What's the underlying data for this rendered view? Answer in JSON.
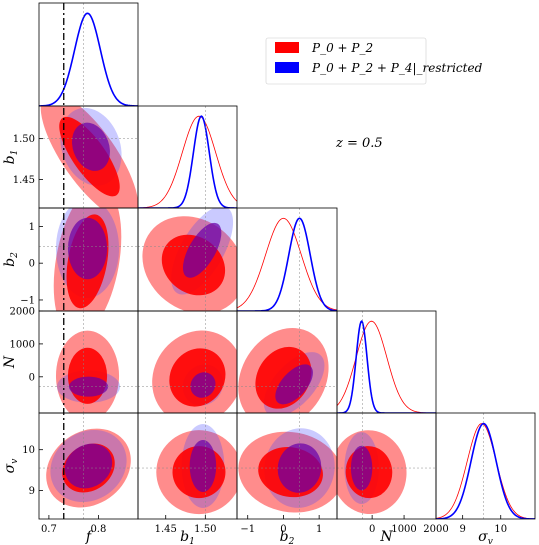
{
  "chart_data": {
    "type": "corner",
    "annotation": "z = 0.5",
    "legend": {
      "placement": "top-right",
      "entries": [
        {
          "label": "P_0 + P_2",
          "color": "#ff0000"
        },
        {
          "label": "P_0 + P_2 + P_4|_restricted",
          "color": "#0000ff"
        }
      ]
    },
    "parameters": [
      {
        "key": "f",
        "label": "f",
        "sub": "",
        "range": [
          0.68,
          0.88
        ],
        "ticks": [
          0.7,
          0.8
        ],
        "tick_labels": [
          "0.7",
          "0.8"
        ],
        "fiducial": 0.77
      },
      {
        "key": "b1",
        "label": "b",
        "sub": "1",
        "range": [
          1.415,
          1.54
        ],
        "ticks": [
          1.45,
          1.5
        ],
        "tick_labels": [
          "1.45",
          "1.50"
        ],
        "fiducial": 1.5
      },
      {
        "key": "b2",
        "label": "b",
        "sub": "2",
        "range": [
          -1.3,
          1.5
        ],
        "ticks": [
          -1,
          0,
          1
        ],
        "tick_labels": [
          "−1",
          "0",
          "1"
        ],
        "fiducial": 0.45
      },
      {
        "key": "N",
        "label": "N",
        "sub": "",
        "range": [
          -1100,
          2000
        ],
        "ticks": [
          0,
          1000,
          2000
        ],
        "tick_labels": [
          "0",
          "1000",
          "2000"
        ],
        "fiducial": -300
      },
      {
        "key": "sv",
        "label": "σ",
        "sub": "v",
        "range": [
          8.3,
          10.9
        ],
        "ticks": [
          9,
          10
        ],
        "tick_labels": [
          "9",
          "10"
        ],
        "fiducial": 9.55
      }
    ],
    "vertical_reference": {
      "param": "f",
      "value": 0.73,
      "style": "dash-dot"
    },
    "marginals": {
      "red": [
        {
          "mean": 0.778,
          "sd": 0.026
        },
        {
          "mean": 1.492,
          "sd": 0.021
        },
        {
          "mean": 0.0,
          "sd": 0.5
        },
        {
          "mean": -20,
          "sd": 480
        },
        {
          "mean": 9.5,
          "sd": 0.38
        }
      ],
      "blue": [
        {
          "mean": 0.778,
          "sd": 0.026
        },
        {
          "mean": 1.495,
          "sd": 0.01
        },
        {
          "mean": 0.45,
          "sd": 0.3
        },
        {
          "mean": -330,
          "sd": 170
        },
        {
          "mean": 9.55,
          "sd": 0.33
        }
      ]
    },
    "contours": [
      {
        "i": 1,
        "j": 0,
        "red": {
          "cx": 0.782,
          "cy": 1.478,
          "sx": 0.022,
          "sy": 0.038,
          "ang": -35
        },
        "blue": {
          "cx": 0.785,
          "cy": 1.49,
          "sx": 0.024,
          "sy": 0.02,
          "ang": -20
        }
      },
      {
        "i": 2,
        "j": 0,
        "red": {
          "cx": 0.778,
          "cy": 0.05,
          "sx": 0.026,
          "sy": 0.85,
          "ang": 10
        },
        "blue": {
          "cx": 0.778,
          "cy": 0.4,
          "sx": 0.026,
          "sy": 0.55,
          "ang": 0
        }
      },
      {
        "i": 2,
        "j": 1,
        "red": {
          "cx": 1.485,
          "cy": -0.05,
          "sx": 0.028,
          "sy": 0.5,
          "ang": 38
        },
        "blue": {
          "cx": 1.496,
          "cy": 0.35,
          "sx": 0.011,
          "sy": 0.55,
          "ang": 30
        }
      },
      {
        "i": 3,
        "j": 0,
        "red": {
          "cx": 0.778,
          "cy": 30,
          "sx": 0.026,
          "sy": 560,
          "ang": 0
        },
        "blue": {
          "cx": 0.78,
          "cy": -300,
          "sx": 0.026,
          "sy": 200,
          "ang": 0
        }
      },
      {
        "i": 3,
        "j": 1,
        "red": {
          "cx": 1.49,
          "cy": -20,
          "sx": 0.025,
          "sy": 540,
          "ang": -55
        },
        "blue": {
          "cx": 1.497,
          "cy": -250,
          "sx": 0.011,
          "sy": 240,
          "ang": -50
        }
      },
      {
        "i": 3,
        "j": 2,
        "red": {
          "cx": 0.0,
          "cy": -30,
          "sx": 0.6,
          "sy": 520,
          "ang": -58
        },
        "blue": {
          "cx": 0.3,
          "cy": -230,
          "sx": 0.45,
          "sy": 250,
          "ang": -48
        }
      },
      {
        "i": 4,
        "j": 0,
        "red": {
          "cx": 0.78,
          "cy": 9.55,
          "sx": 0.03,
          "sy": 0.45,
          "ang": 55
        },
        "blue": {
          "cx": 0.78,
          "cy": 9.6,
          "sx": 0.028,
          "sy": 0.4,
          "ang": 55
        }
      },
      {
        "i": 4,
        "j": 1,
        "red": {
          "cx": 1.492,
          "cy": 9.45,
          "sx": 0.022,
          "sy": 0.42,
          "ang": 0
        },
        "blue": {
          "cx": 1.497,
          "cy": 9.6,
          "sx": 0.011,
          "sy": 0.42,
          "ang": 0
        }
      },
      {
        "i": 4,
        "j": 2,
        "red": {
          "cx": 0.2,
          "cy": 9.45,
          "sx": 0.6,
          "sy": 0.4,
          "ang": 10
        },
        "blue": {
          "cx": 0.45,
          "cy": 9.55,
          "sx": 0.4,
          "sy": 0.4,
          "ang": 10
        }
      },
      {
        "i": 4,
        "j": 3,
        "red": {
          "cx": -100,
          "cy": 9.45,
          "sx": 480,
          "sy": 0.42,
          "ang": -5
        },
        "blue": {
          "cx": -330,
          "cy": 9.55,
          "sx": 220,
          "sy": 0.36,
          "ang": 0
        }
      }
    ],
    "grid": false
  }
}
